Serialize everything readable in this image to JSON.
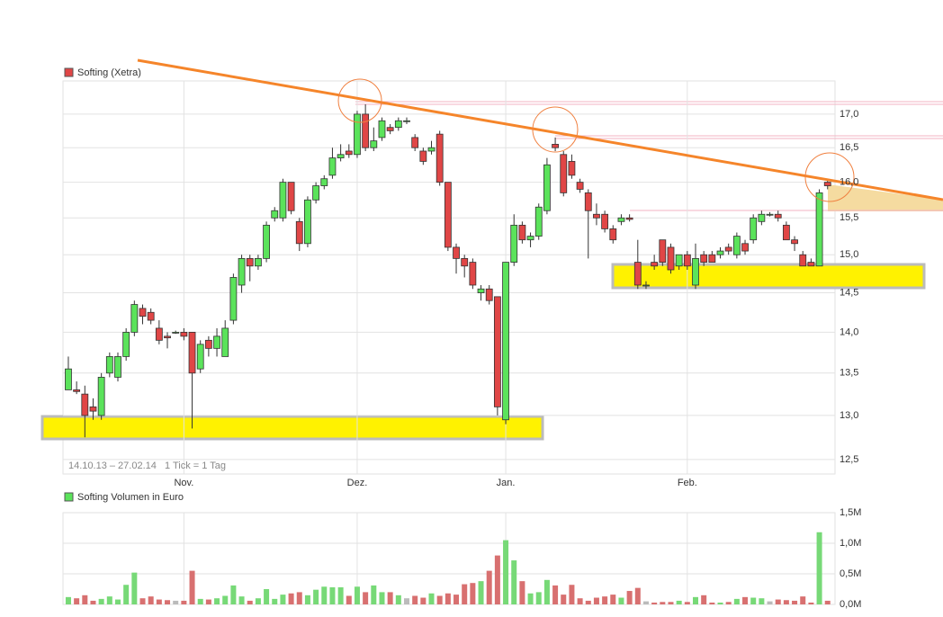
{
  "chart_data": [
    {
      "type": "candlestick",
      "legend": "Softing (Xetra)",
      "date_range": "14.10.13 – 27.02.14",
      "tick_note": "1 Tick = 1 Tag",
      "log_scale": true,
      "grid": true,
      "up_color": "#5be35b",
      "down_color": "#e04646",
      "legend_color": "#e04646",
      "ylim": [
        12.34,
        17.51
      ],
      "yticks": [
        {
          "value": 12.5,
          "label": "12,5"
        },
        {
          "value": 13,
          "label": "13,0"
        },
        {
          "value": 13.5,
          "label": "13,5"
        },
        {
          "value": 14,
          "label": "14,0"
        },
        {
          "value": 14.5,
          "label": "14,5"
        },
        {
          "value": 15,
          "label": "15,0"
        },
        {
          "value": 15.5,
          "label": "15,5"
        },
        {
          "value": 16,
          "label": "16,0"
        },
        {
          "value": 16.5,
          "label": "16,5"
        },
        {
          "value": 17,
          "label": "17,0"
        }
      ],
      "xlim": [
        -0.65,
        92.9
      ],
      "xticks": [
        {
          "value": 14,
          "label": "Nov."
        },
        {
          "value": 35,
          "label": "Dez."
        },
        {
          "value": 53,
          "label": "Jan."
        },
        {
          "value": 75,
          "label": "Feb."
        }
      ],
      "ohlc": [
        [
          13.3,
          13.7,
          13.3,
          13.55
        ],
        [
          13.3,
          13.4,
          13.25,
          13.28
        ],
        [
          13.25,
          13.35,
          12.75,
          13.0
        ],
        [
          13.1,
          13.2,
          12.95,
          13.05
        ],
        [
          13.0,
          13.5,
          12.95,
          13.45
        ],
        [
          13.5,
          13.75,
          13.45,
          13.7
        ],
        [
          13.45,
          13.75,
          13.4,
          13.7
        ],
        [
          13.7,
          14.05,
          13.65,
          14.0
        ],
        [
          14.0,
          14.4,
          13.95,
          14.35
        ],
        [
          14.3,
          14.35,
          14.1,
          14.2
        ],
        [
          14.25,
          14.3,
          14.1,
          14.15
        ],
        [
          14.05,
          14.15,
          13.85,
          13.9
        ],
        [
          13.95,
          14.0,
          13.8,
          13.93
        ],
        [
          14.0,
          14.02,
          13.98,
          14.0
        ],
        [
          14.0,
          14.05,
          13.9,
          13.95
        ],
        [
          14.0,
          14.0,
          12.85,
          13.5
        ],
        [
          13.55,
          13.9,
          13.5,
          13.85
        ],
        [
          13.9,
          13.95,
          13.7,
          13.8
        ],
        [
          13.8,
          14.05,
          13.7,
          13.95
        ],
        [
          13.7,
          14.15,
          13.7,
          14.05
        ],
        [
          14.15,
          14.75,
          14.1,
          14.7
        ],
        [
          14.6,
          15.0,
          14.5,
          14.95
        ],
        [
          14.95,
          15.0,
          14.65,
          14.85
        ],
        [
          14.85,
          15.0,
          14.8,
          14.95
        ],
        [
          14.95,
          15.45,
          14.9,
          15.4
        ],
        [
          15.5,
          15.65,
          15.45,
          15.6
        ],
        [
          15.5,
          16.05,
          15.45,
          16.0
        ],
        [
          16.0,
          16.0,
          15.55,
          15.6
        ],
        [
          15.45,
          15.5,
          15.05,
          15.15
        ],
        [
          15.15,
          15.8,
          15.1,
          15.75
        ],
        [
          15.75,
          16.0,
          15.7,
          15.95
        ],
        [
          15.95,
          16.1,
          15.9,
          16.05
        ],
        [
          16.1,
          16.5,
          16.05,
          16.35
        ],
        [
          16.35,
          16.55,
          16.3,
          16.4
        ],
        [
          16.45,
          16.55,
          16.35,
          16.4
        ],
        [
          16.4,
          17.05,
          16.35,
          17.0
        ],
        [
          17.0,
          17.15,
          16.45,
          16.5
        ],
        [
          16.5,
          16.8,
          16.45,
          16.6
        ],
        [
          16.65,
          16.95,
          16.6,
          16.9
        ],
        [
          16.8,
          16.85,
          16.7,
          16.75
        ],
        [
          16.8,
          16.95,
          16.75,
          16.9
        ],
        [
          16.9,
          16.95,
          16.85,
          16.9
        ],
        [
          16.65,
          16.7,
          16.45,
          16.5
        ],
        [
          16.45,
          16.5,
          16.25,
          16.3
        ],
        [
          16.45,
          16.6,
          16.4,
          16.5
        ],
        [
          16.7,
          16.75,
          15.95,
          16.0
        ],
        [
          16.0,
          16.0,
          15.05,
          15.1
        ],
        [
          15.1,
          15.15,
          14.75,
          14.95
        ],
        [
          14.95,
          15.0,
          14.7,
          14.85
        ],
        [
          14.9,
          14.95,
          14.55,
          14.6
        ],
        [
          14.5,
          14.6,
          14.4,
          14.55
        ],
        [
          14.55,
          14.6,
          14.35,
          14.4
        ],
        [
          14.45,
          14.45,
          13.0,
          13.1
        ],
        [
          12.95,
          14.9,
          12.9,
          14.9
        ],
        [
          14.9,
          15.55,
          14.85,
          15.4
        ],
        [
          15.4,
          15.45,
          15.15,
          15.2
        ],
        [
          15.2,
          15.3,
          15.1,
          15.25
        ],
        [
          15.25,
          15.7,
          15.2,
          15.65
        ],
        [
          15.6,
          16.35,
          15.55,
          16.25
        ],
        [
          16.55,
          16.65,
          16.45,
          16.5
        ],
        [
          16.4,
          16.45,
          15.8,
          15.85
        ],
        [
          16.3,
          16.4,
          16.05,
          16.1
        ],
        [
          16.0,
          16.05,
          15.85,
          15.9
        ],
        [
          15.85,
          15.9,
          14.95,
          15.6
        ],
        [
          15.55,
          15.7,
          15.4,
          15.5
        ],
        [
          15.55,
          15.6,
          15.3,
          15.35
        ],
        [
          15.35,
          15.4,
          15.15,
          15.2
        ],
        [
          15.45,
          15.55,
          15.4,
          15.5
        ],
        [
          15.5,
          15.55,
          15.45,
          15.48
        ],
        [
          14.9,
          15.2,
          14.55,
          14.6
        ],
        [
          14.6,
          14.65,
          14.55,
          14.6
        ],
        [
          14.9,
          15.0,
          14.8,
          14.85
        ],
        [
          15.2,
          15.2,
          14.85,
          14.9
        ],
        [
          15.1,
          15.15,
          14.75,
          14.8
        ],
        [
          14.85,
          15.0,
          14.8,
          15.0
        ],
        [
          15.0,
          15.05,
          14.8,
          14.85
        ],
        [
          14.6,
          15.15,
          14.55,
          14.95
        ],
        [
          15.0,
          15.05,
          14.85,
          14.9
        ],
        [
          15.0,
          15.05,
          14.9,
          14.9
        ],
        [
          15.0,
          15.1,
          14.95,
          15.05
        ],
        [
          15.1,
          15.15,
          15.0,
          15.05
        ],
        [
          15.0,
          15.3,
          14.95,
          15.25
        ],
        [
          15.15,
          15.2,
          15.0,
          15.05
        ],
        [
          15.2,
          15.55,
          15.15,
          15.5
        ],
        [
          15.45,
          15.6,
          15.4,
          15.55
        ],
        [
          15.55,
          15.58,
          15.52,
          15.55
        ],
        [
          15.55,
          15.6,
          15.45,
          15.5
        ],
        [
          15.4,
          15.45,
          15.2,
          15.2
        ],
        [
          15.2,
          15.25,
          15.05,
          15.15
        ],
        [
          15.0,
          15.05,
          14.85,
          14.85
        ],
        [
          14.9,
          14.95,
          14.85,
          14.85
        ],
        [
          14.85,
          15.9,
          14.85,
          15.85
        ],
        [
          16.0,
          16.05,
          15.9,
          15.95
        ]
      ]
    },
    {
      "type": "bar",
      "legend": "Softing Volumen in Euro",
      "legend_color": "#5be35b",
      "grid": true,
      "up_color": "#77d977",
      "down_color": "#d87070",
      "flat_color": "#bbbbbb",
      "ylim": [
        0,
        1500000
      ],
      "yticks": [
        {
          "value": 0,
          "label": "0,0M"
        },
        {
          "value": 500000,
          "label": "0,5M"
        },
        {
          "value": 1000000,
          "label": "1,0M"
        },
        {
          "value": 1500000,
          "label": "1,5M"
        }
      ],
      "values": [
        120000,
        100000,
        150000,
        60000,
        90000,
        130000,
        80000,
        320000,
        520000,
        100000,
        130000,
        80000,
        70000,
        60000,
        60000,
        550000,
        90000,
        80000,
        100000,
        140000,
        310000,
        130000,
        60000,
        100000,
        250000,
        90000,
        160000,
        180000,
        200000,
        150000,
        240000,
        290000,
        280000,
        280000,
        140000,
        290000,
        200000,
        310000,
        200000,
        200000,
        150000,
        100000,
        140000,
        110000,
        180000,
        140000,
        180000,
        160000,
        330000,
        350000,
        380000,
        550000,
        800000,
        1050000,
        720000,
        380000,
        180000,
        200000,
        400000,
        310000,
        160000,
        320000,
        100000,
        60000,
        110000,
        130000,
        160000,
        110000,
        220000,
        270000,
        50000,
        30000,
        40000,
        40000,
        60000,
        40000,
        120000,
        150000,
        30000,
        30000,
        40000,
        90000,
        120000,
        110000,
        100000,
        50000,
        80000,
        70000,
        60000,
        130000,
        30000,
        1180000,
        60000
      ]
    }
  ]
}
